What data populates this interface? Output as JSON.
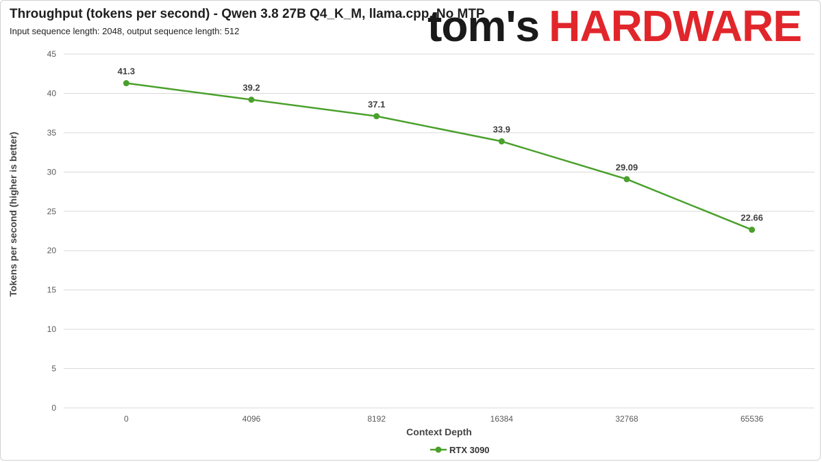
{
  "header": {
    "title": "Throughput (tokens per second) - Qwen 3.8 27B Q4_K_M, llama.cpp, No MTP",
    "subtitle": "Input sequence length: 2048, output sequence length: 512"
  },
  "logo": {
    "part1": "tom's",
    "part2": "HARDWARE",
    "brand_color": "#e1262b"
  },
  "chart_data": {
    "type": "line",
    "title": "Throughput (tokens per second) - Qwen 3.8 27B Q4_K_M, llama.cpp, No MTP",
    "subtitle": "Input sequence length: 2048, output sequence length: 512",
    "xlabel": "Context Depth",
    "ylabel": "Tokens per second (higher is better)",
    "categories": [
      "0",
      "4096",
      "8192",
      "16384",
      "32768",
      "65536"
    ],
    "series": [
      {
        "name": "RTX 3090",
        "color": "#4aa02c",
        "values": [
          41.3,
          39.2,
          37.1,
          33.9,
          29.09,
          22.66
        ]
      }
    ],
    "ylim": [
      0,
      45
    ],
    "yticks": [
      0,
      5,
      10,
      15,
      20,
      25,
      30,
      35,
      40,
      45
    ],
    "grid": true,
    "legend": "bottom-center",
    "data_labels": true
  }
}
